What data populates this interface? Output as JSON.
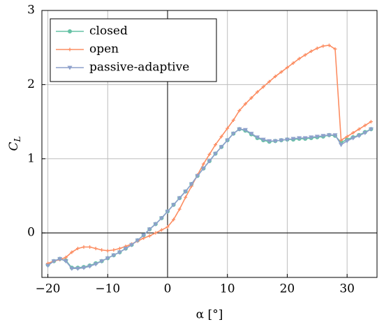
{
  "chart_data": {
    "type": "line",
    "xlabel": "α [°]",
    "ylabel": "C",
    "ylabel_subscript": "L",
    "x": [
      -20,
      -19,
      -18,
      -17,
      -16,
      -15,
      -14,
      -13,
      -12,
      -11,
      -10,
      -9,
      -8,
      -7,
      -6,
      -5,
      -4,
      -3,
      -2,
      -1,
      0,
      1,
      2,
      3,
      4,
      5,
      6,
      7,
      8,
      9,
      10,
      11,
      12,
      13,
      14,
      15,
      16,
      17,
      18,
      19,
      20,
      21,
      22,
      23,
      24,
      25,
      26,
      27,
      28,
      29,
      30,
      31,
      32,
      33,
      34
    ],
    "series": [
      {
        "name": "closed",
        "color": "#66c2a5",
        "marker": "circle",
        "values": [
          -0.43,
          -0.38,
          -0.35,
          -0.37,
          -0.47,
          -0.47,
          -0.46,
          -0.44,
          -0.41,
          -0.38,
          -0.34,
          -0.3,
          -0.26,
          -0.21,
          -0.16,
          -0.1,
          -0.03,
          0.05,
          0.12,
          0.2,
          0.29,
          0.38,
          0.47,
          0.56,
          0.66,
          0.77,
          0.87,
          0.97,
          1.07,
          1.16,
          1.25,
          1.34,
          1.4,
          1.38,
          1.33,
          1.28,
          1.25,
          1.23,
          1.24,
          1.25,
          1.26,
          1.26,
          1.27,
          1.27,
          1.28,
          1.29,
          1.3,
          1.32,
          1.31,
          1.22,
          1.26,
          1.29,
          1.32,
          1.36,
          1.4
        ]
      },
      {
        "name": "open",
        "color": "#fc8d62",
        "marker": "plus",
        "values": [
          -0.41,
          -0.38,
          -0.36,
          -0.33,
          -0.26,
          -0.21,
          -0.19,
          -0.19,
          -0.21,
          -0.23,
          -0.24,
          -0.23,
          -0.21,
          -0.18,
          -0.15,
          -0.11,
          -0.07,
          -0.04,
          0,
          0.04,
          0.08,
          0.18,
          0.32,
          0.48,
          0.63,
          0.78,
          0.93,
          1.06,
          1.19,
          1.3,
          1.41,
          1.52,
          1.65,
          1.74,
          1.82,
          1.9,
          1.97,
          2.04,
          2.11,
          2.17,
          2.23,
          2.29,
          2.35,
          2.4,
          2.45,
          2.49,
          2.52,
          2.53,
          2.48,
          1.25,
          1.3,
          1.35,
          1.4,
          1.45,
          1.5
        ]
      },
      {
        "name": "passive-adaptive",
        "color": "#8da0cb",
        "marker": "triangle-down",
        "values": [
          -0.44,
          -0.38,
          -0.35,
          -0.38,
          -0.48,
          -0.48,
          -0.47,
          -0.45,
          -0.42,
          -0.38,
          -0.34,
          -0.3,
          -0.26,
          -0.21,
          -0.16,
          -0.1,
          -0.03,
          0.05,
          0.12,
          0.2,
          0.29,
          0.38,
          0.47,
          0.56,
          0.66,
          0.77,
          0.87,
          0.97,
          1.07,
          1.16,
          1.25,
          1.34,
          1.4,
          1.39,
          1.34,
          1.29,
          1.26,
          1.24,
          1.24,
          1.25,
          1.26,
          1.27,
          1.28,
          1.28,
          1.29,
          1.3,
          1.31,
          1.32,
          1.32,
          1.19,
          1.24,
          1.28,
          1.31,
          1.35,
          1.4
        ]
      }
    ],
    "xlim": [
      -21,
      35
    ],
    "ylim": [
      -0.6,
      3
    ],
    "xticks": [
      {
        "value": -20,
        "label": "−20"
      },
      {
        "value": -10,
        "label": "−10"
      },
      0,
      10,
      20,
      30
    ],
    "yticks": [
      0,
      1,
      2,
      3
    ],
    "grid": true,
    "legend": "upper left"
  }
}
